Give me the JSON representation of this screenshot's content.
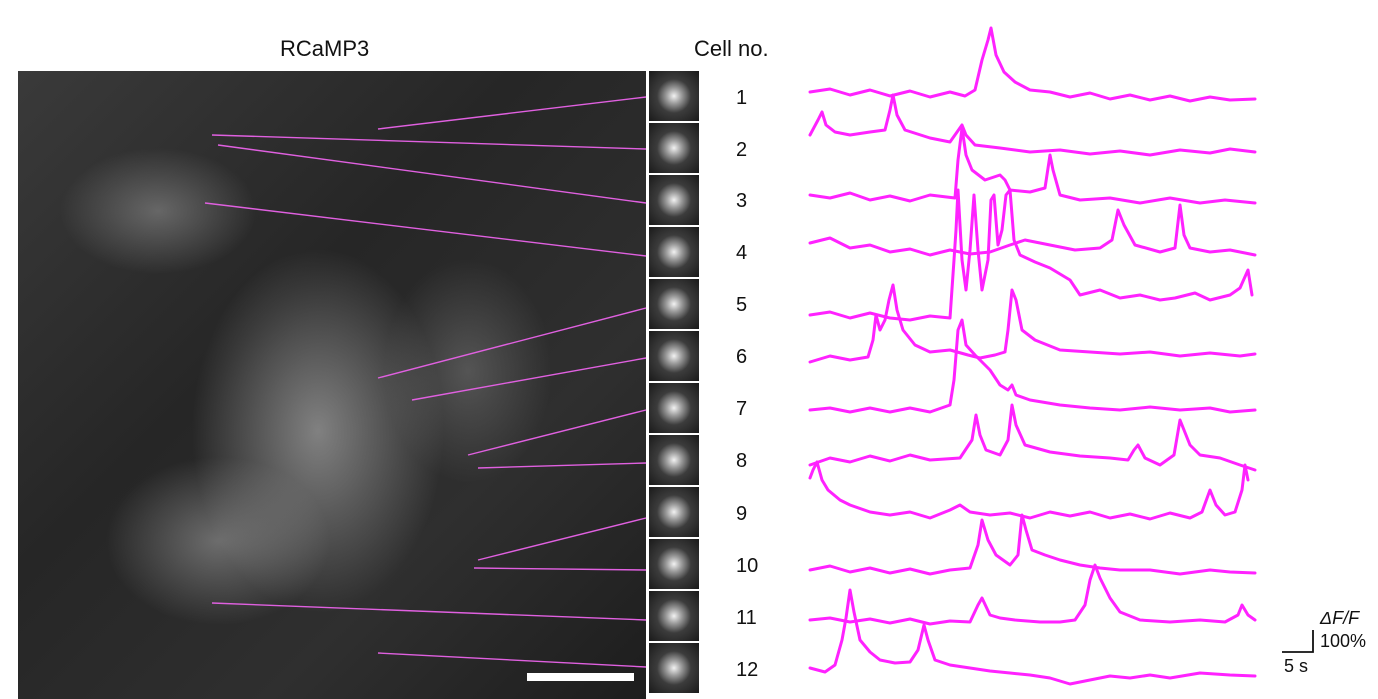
{
  "figure": {
    "micrograph_title": "RCaMP3",
    "cells_title": "Cell no.",
    "cell_numbers": [
      "1",
      "2",
      "3",
      "4",
      "5",
      "6",
      "7",
      "8",
      "9",
      "10",
      "11",
      "12"
    ],
    "scale_bar": {
      "line1": "ΔF/F",
      "line2": "100%",
      "time": "5 s"
    }
  },
  "colors": {
    "trace": "#ff22ff",
    "pointer_lines": "#e060e0",
    "scale_bar": "#ffffff"
  }
}
